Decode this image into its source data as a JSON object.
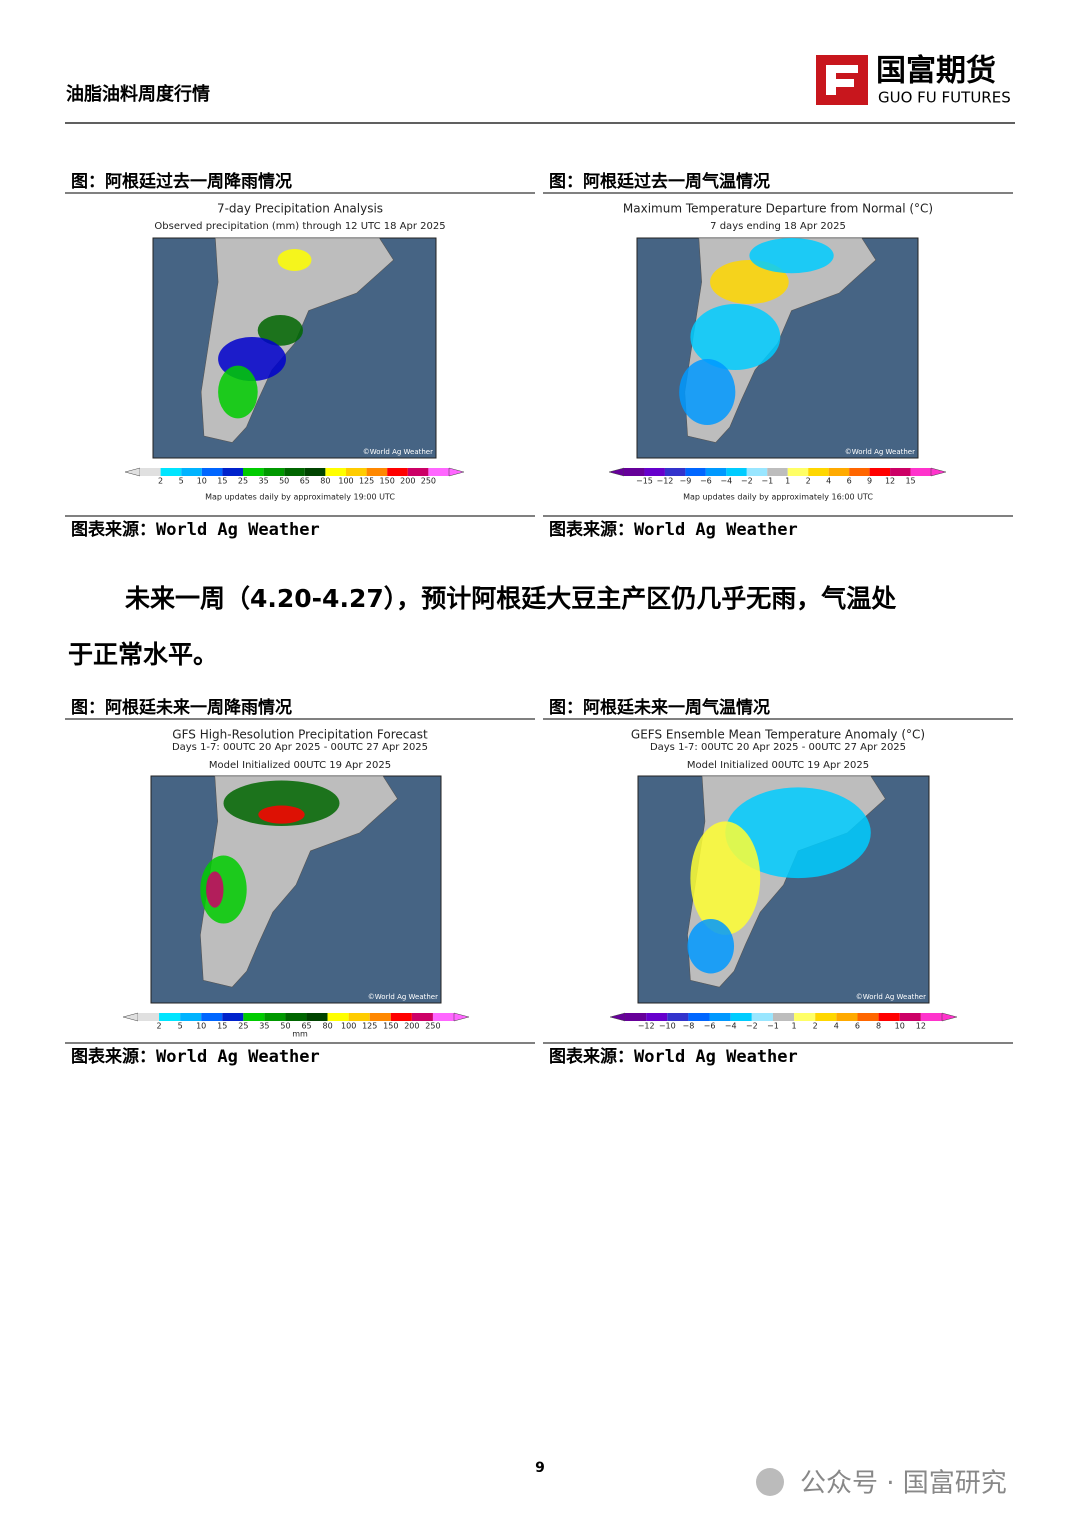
{
  "header": {
    "title": "油脂油料周度行情",
    "logo_cn": "国富期货",
    "logo_en": "GUO FU FUTURES"
  },
  "figures": [
    {
      "caption": "图：阿根廷过去一周降雨情况",
      "map_title": [
        "7-day Precipitation Analysis",
        "Observed precipitation (mm) through 12 UTC 18 Apr 2025"
      ],
      "colorbar": [
        "2",
        "5",
        "10",
        "15",
        "25",
        "35",
        "50",
        "65",
        "80",
        "100",
        "125",
        "150",
        "200",
        "250"
      ],
      "credit": "©World Ag Weather",
      "footnote": "Map updates daily by approximately 19:00 UTC",
      "source": "图表来源：World Ag Weather"
    },
    {
      "caption": "图：阿根廷过去一周气温情况",
      "map_title": [
        "Maximum Temperature Departure from Normal (°C)",
        "7 days ending 18 Apr 2025"
      ],
      "colorbar": [
        "−15",
        "−12",
        "−9",
        "−6",
        "−4",
        "−2",
        "−1",
        "1",
        "2",
        "4",
        "6",
        "9",
        "12",
        "15"
      ],
      "credit": "©World Ag Weather",
      "footnote": "Map updates daily by approximately 16:00 UTC",
      "source": "图表来源：World Ag Weather"
    },
    {
      "caption": "图：阿根廷未来一周降雨情况",
      "map_title": [
        "GFS High-Resolution Precipitation Forecast",
        "Days 1-7: 00UTC 20 Apr 2025 - 00UTC 27 Apr 2025",
        "Model Initialized 00UTC 19 Apr 2025"
      ],
      "colorbar": [
        "2",
        "5",
        "10",
        "15",
        "25",
        "35",
        "50",
        "65",
        "80",
        "100",
        "125",
        "150",
        "200",
        "250"
      ],
      "credit": "©World Ag Weather",
      "footnote": "mm",
      "source": "图表来源：World Ag Weather"
    },
    {
      "caption": "图：阿根廷未来一周气温情况",
      "map_title": [
        "GEFS Ensemble Mean Temperature Anomaly (°C)",
        "Days 1-7: 00UTC 20 Apr 2025 - 00UTC 27 Apr 2025",
        "Model Initialized 00UTC 19 Apr 2025"
      ],
      "colorbar": [
        "−12",
        "−10",
        "−8",
        "−6",
        "−4",
        "−2",
        "−1",
        "1",
        "2",
        "4",
        "6",
        "8",
        "10",
        "12"
      ],
      "credit": "©World Ag Weather",
      "source": "图表来源：World Ag Weather"
    }
  ],
  "paragraph": [
    "未来一周（4.20-4.27），预计阿根廷大豆主产区仍几乎无雨，气温处",
    "于正常水平。"
  ],
  "page_number": "9",
  "watermark": "公众号 · 国富研究"
}
